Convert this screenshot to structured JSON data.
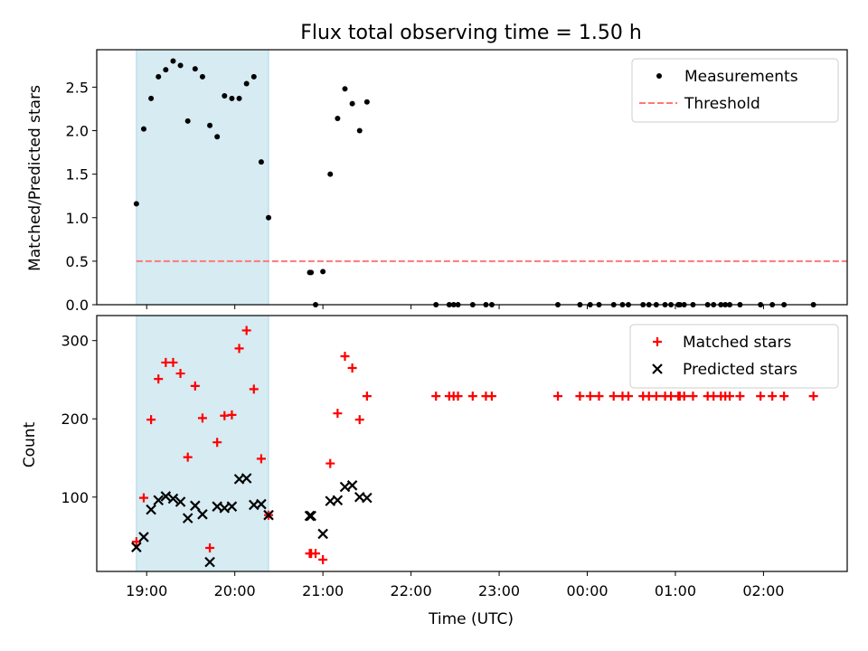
{
  "colors": {
    "measurement": "#000000",
    "threshold": "#ff7777",
    "matched": "#ff0000",
    "predicted": "#000000",
    "highlight": "#add8e6"
  },
  "chart_data": [
    {
      "type": "scatter",
      "title": "Flux total observing time = 1.50 h",
      "xlabel": "",
      "ylabel": "Matched/Predicted stars",
      "x_unit": "time (UTC)",
      "xlim": [
        "18:26",
        "02:57"
      ],
      "ylim": [
        0,
        2.93
      ],
      "yticks": [
        "0.0",
        "0.5",
        "1.0",
        "1.5",
        "2.0",
        "2.5"
      ],
      "legend_position": "upper right",
      "highlight_interval": [
        "18:53",
        "20:23"
      ],
      "threshold": {
        "name": "Threshold",
        "value": 0.5,
        "x_range": [
          "18:53",
          "02:57"
        ]
      },
      "series": [
        {
          "name": "Measurements",
          "points": [
            [
              "18:53",
              1.16
            ],
            [
              "18:58",
              2.02
            ],
            [
              "19:03",
              2.37
            ],
            [
              "19:08",
              2.62
            ],
            [
              "19:13",
              2.7
            ],
            [
              "19:18",
              2.8
            ],
            [
              "19:23",
              2.75
            ],
            [
              "19:28",
              2.11
            ],
            [
              "19:33",
              2.71
            ],
            [
              "19:38",
              2.62
            ],
            [
              "19:43",
              2.06
            ],
            [
              "19:48",
              1.93
            ],
            [
              "19:53",
              2.4
            ],
            [
              "19:58",
              2.37
            ],
            [
              "20:03",
              2.37
            ],
            [
              "20:08",
              2.54
            ],
            [
              "20:13",
              2.62
            ],
            [
              "20:18",
              1.64
            ],
            [
              "20:23",
              1.0
            ],
            [
              "20:51",
              0.37
            ],
            [
              "20:52",
              0.37
            ],
            [
              "20:55",
              0.0
            ],
            [
              "21:00",
              0.38
            ],
            [
              "21:05",
              1.5
            ],
            [
              "21:10",
              2.14
            ],
            [
              "21:15",
              2.48
            ],
            [
              "21:20",
              2.31
            ],
            [
              "21:25",
              2.0
            ],
            [
              "21:30",
              2.33
            ],
            [
              "22:17",
              0
            ],
            [
              "22:26",
              0
            ],
            [
              "22:29",
              0
            ],
            [
              "22:32",
              0
            ],
            [
              "22:42",
              0
            ],
            [
              "22:51",
              0
            ],
            [
              "22:55",
              0
            ],
            [
              "23:40",
              0
            ],
            [
              "23:55",
              0
            ],
            [
              "24:02",
              0
            ],
            [
              "24:08",
              0
            ],
            [
              "24:18",
              0
            ],
            [
              "24:24",
              0
            ],
            [
              "24:28",
              0
            ],
            [
              "24:38",
              0
            ],
            [
              "24:42",
              0
            ],
            [
              "24:47",
              0
            ],
            [
              "24:53",
              0
            ],
            [
              "24:57",
              0
            ],
            [
              "25:02",
              0
            ],
            [
              "25:03",
              0
            ],
            [
              "25:06",
              0
            ],
            [
              "25:12",
              0
            ],
            [
              "25:22",
              0
            ],
            [
              "25:26",
              0
            ],
            [
              "25:31",
              0
            ],
            [
              "25:34",
              0
            ],
            [
              "25:37",
              0
            ],
            [
              "25:44",
              0
            ],
            [
              "25:58",
              0
            ],
            [
              "26:06",
              0
            ],
            [
              "26:14",
              0
            ],
            [
              "26:34",
              0
            ]
          ]
        }
      ]
    },
    {
      "type": "scatter",
      "title": "",
      "xlabel": "Time (UTC)",
      "ylabel": "Count",
      "xlim": [
        "18:26",
        "02:57"
      ],
      "ylim": [
        5,
        332
      ],
      "yticks": [
        "100",
        "200",
        "300"
      ],
      "xticks": [
        "19:00",
        "20:00",
        "21:00",
        "22:00",
        "23:00",
        "00:00",
        "01:00",
        "02:00"
      ],
      "legend_position": "upper right",
      "highlight_interval": [
        "18:53",
        "20:23"
      ],
      "series": [
        {
          "name": "Matched stars",
          "marker": "plus",
          "points": [
            [
              "18:53",
              43
            ],
            [
              "18:58",
              99
            ],
            [
              "19:03",
              199
            ],
            [
              "19:08",
              251
            ],
            [
              "19:13",
              272
            ],
            [
              "19:18",
              272
            ],
            [
              "19:23",
              258
            ],
            [
              "19:28",
              151
            ],
            [
              "19:33",
              242
            ],
            [
              "19:38",
              201
            ],
            [
              "19:43",
              35
            ],
            [
              "19:48",
              170
            ],
            [
              "19:53",
              204
            ],
            [
              "19:58",
              205
            ],
            [
              "20:03",
              290
            ],
            [
              "20:08",
              313
            ],
            [
              "20:13",
              238
            ],
            [
              "20:18",
              149
            ],
            [
              "20:23",
              77
            ],
            [
              "20:51",
              28
            ],
            [
              "20:52",
              28
            ],
            [
              "20:55",
              28
            ],
            [
              "21:00",
              20
            ],
            [
              "21:05",
              143
            ],
            [
              "21:10",
              207
            ],
            [
              "21:15",
              280
            ],
            [
              "21:20",
              265
            ],
            [
              "21:25",
              199
            ],
            [
              "21:30",
              229
            ],
            [
              "22:17",
              229
            ],
            [
              "22:26",
              229
            ],
            [
              "22:29",
              229
            ],
            [
              "22:32",
              229
            ],
            [
              "22:42",
              229
            ],
            [
              "22:51",
              229
            ],
            [
              "22:55",
              229
            ],
            [
              "23:40",
              229
            ],
            [
              "23:55",
              229
            ],
            [
              "24:02",
              229
            ],
            [
              "24:08",
              229
            ],
            [
              "24:18",
              229
            ],
            [
              "24:24",
              229
            ],
            [
              "24:28",
              229
            ],
            [
              "24:38",
              229
            ],
            [
              "24:42",
              229
            ],
            [
              "24:47",
              229
            ],
            [
              "24:53",
              229
            ],
            [
              "24:57",
              229
            ],
            [
              "25:02",
              229
            ],
            [
              "25:03",
              229
            ],
            [
              "25:06",
              229
            ],
            [
              "25:12",
              229
            ],
            [
              "25:22",
              229
            ],
            [
              "25:26",
              229
            ],
            [
              "25:31",
              229
            ],
            [
              "25:34",
              229
            ],
            [
              "25:37",
              229
            ],
            [
              "25:44",
              229
            ],
            [
              "25:58",
              229
            ],
            [
              "26:06",
              229
            ],
            [
              "26:14",
              229
            ],
            [
              "26:34",
              229
            ]
          ]
        },
        {
          "name": "Predicted stars",
          "marker": "x",
          "points": [
            [
              "18:53",
              36
            ],
            [
              "18:58",
              49
            ],
            [
              "19:03",
              84
            ],
            [
              "19:08",
              96
            ],
            [
              "19:13",
              101
            ],
            [
              "19:18",
              98
            ],
            [
              "19:23",
              94
            ],
            [
              "19:28",
              73
            ],
            [
              "19:33",
              89
            ],
            [
              "19:38",
              78
            ],
            [
              "19:43",
              17
            ],
            [
              "19:48",
              88
            ],
            [
              "19:53",
              86
            ],
            [
              "19:58",
              88
            ],
            [
              "20:03",
              123
            ],
            [
              "20:08",
              124
            ],
            [
              "20:13",
              90
            ],
            [
              "20:18",
              91
            ],
            [
              "20:23",
              77
            ],
            [
              "20:51",
              76
            ],
            [
              "20:52",
              76
            ],
            [
              "21:00",
              53
            ],
            [
              "21:05",
              95
            ],
            [
              "21:10",
              96
            ],
            [
              "21:15",
              113
            ],
            [
              "21:20",
              115
            ],
            [
              "21:25",
              100
            ],
            [
              "21:30",
              99
            ]
          ]
        }
      ]
    }
  ]
}
